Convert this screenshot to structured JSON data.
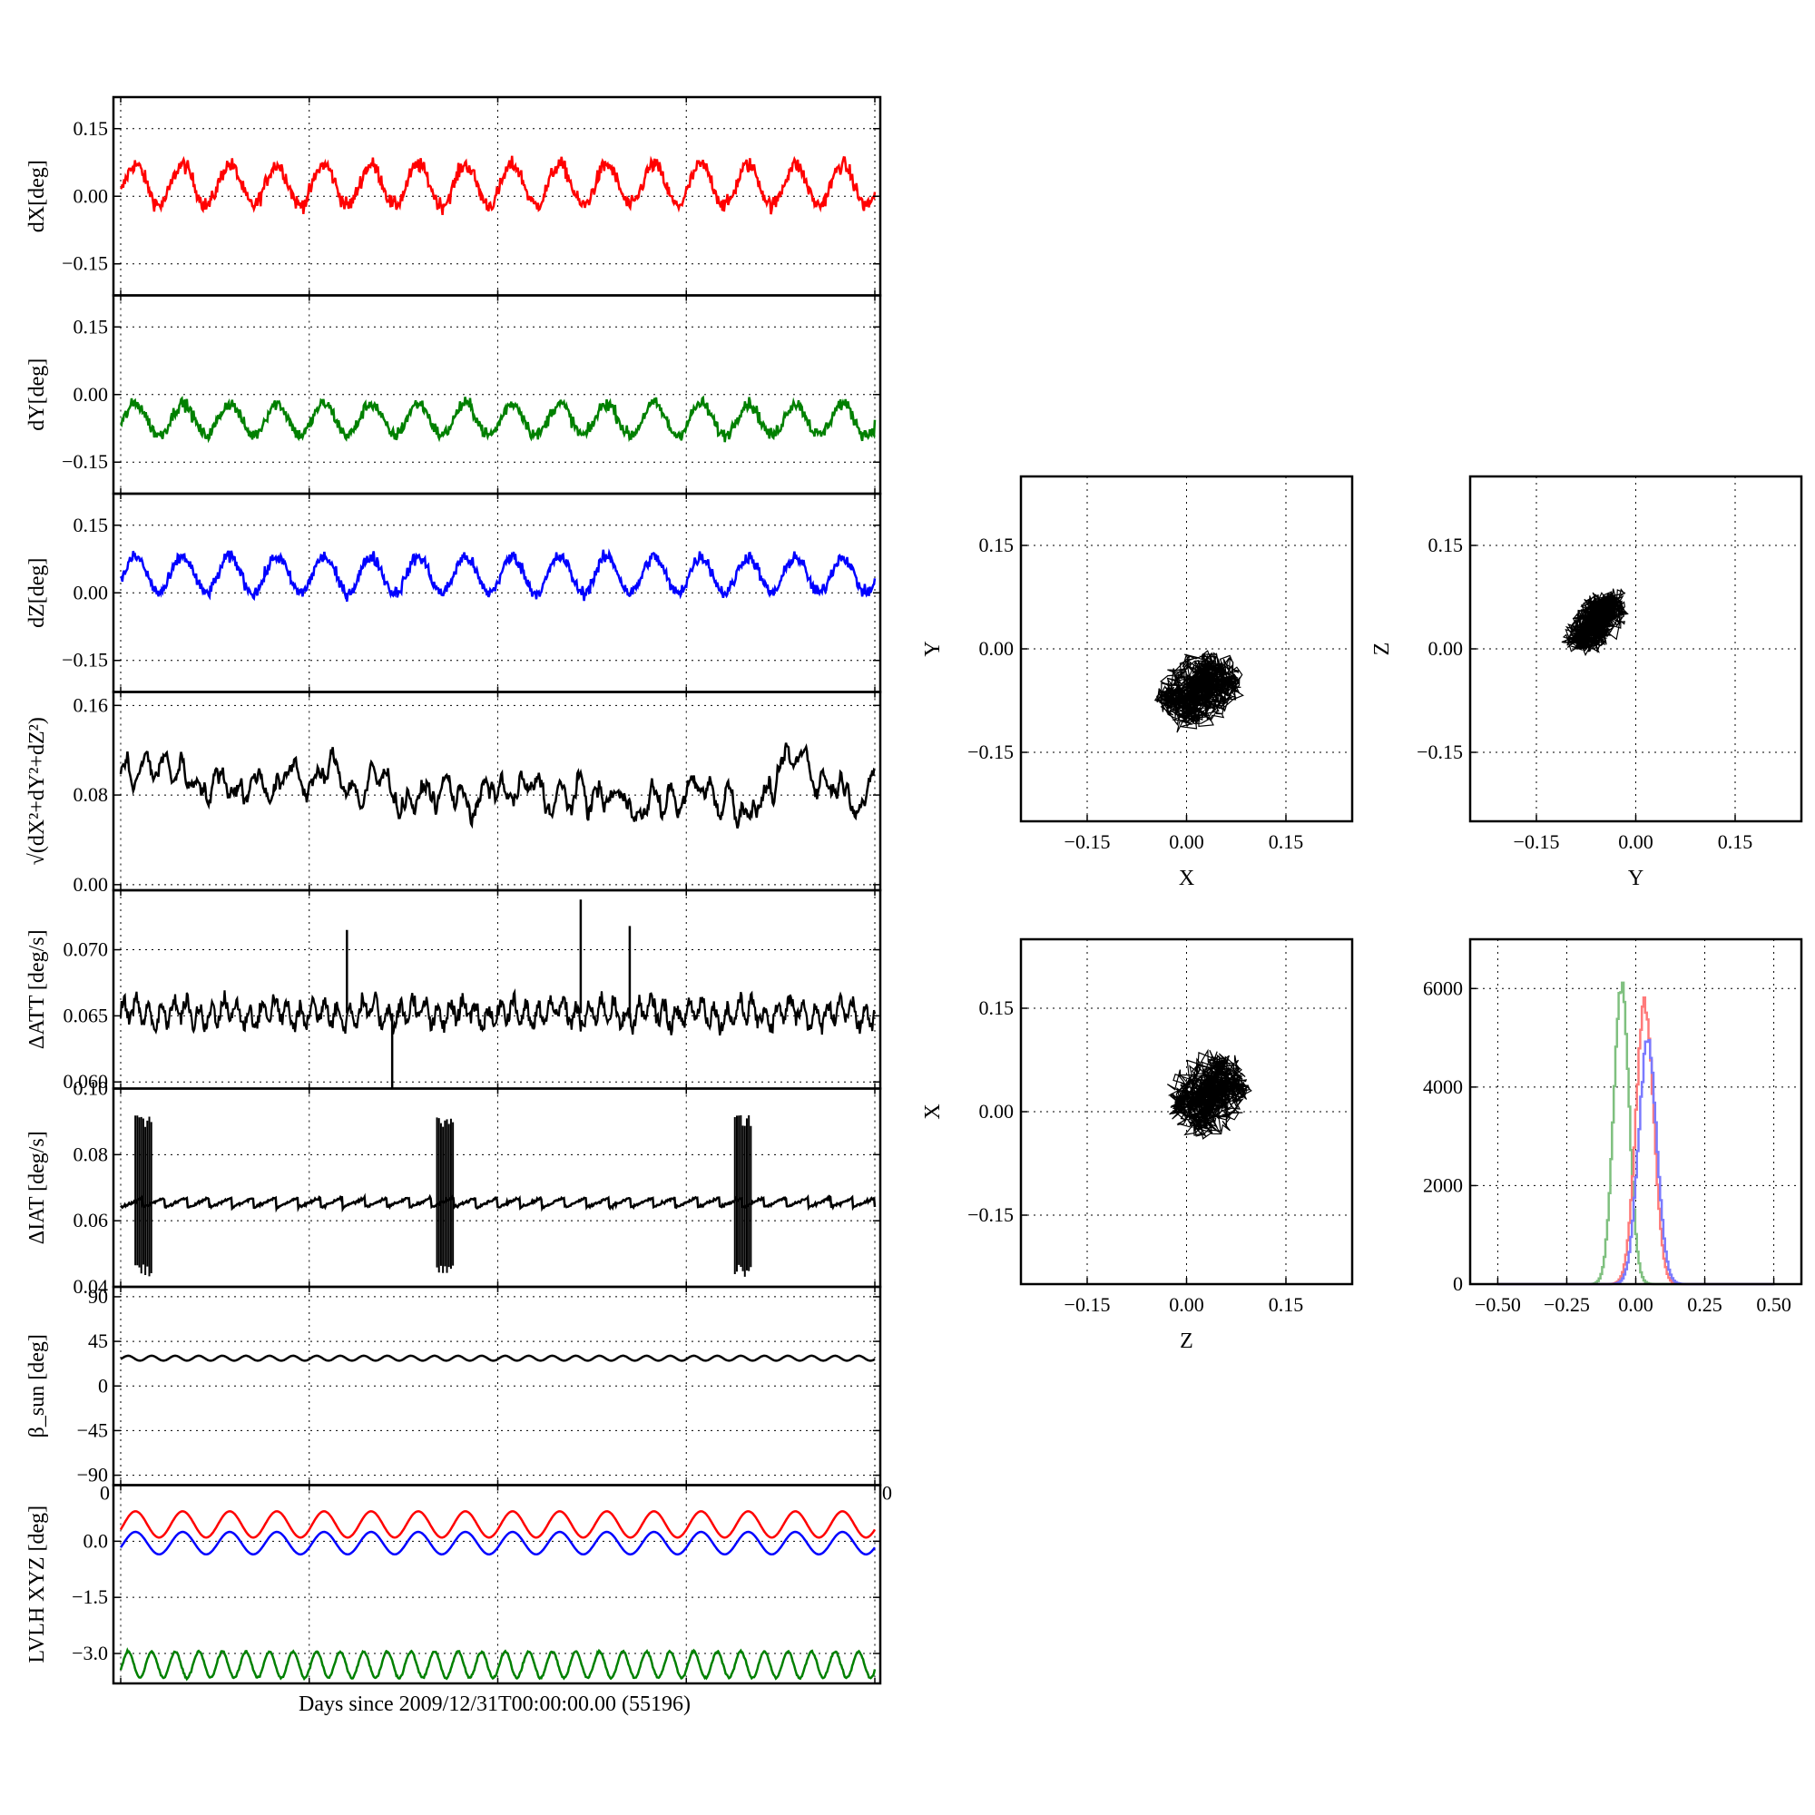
{
  "x_axis_label": "Days since 2009/12/31T00:00:00.00 (55196)",
  "colors": {
    "red": "#ff0000",
    "green": "#008000",
    "blue": "#0000ff",
    "black": "#000000",
    "hist_red": "#ff7a7a",
    "hist_green": "#7fc07f",
    "hist_blue": "#7a7aff"
  },
  "chart_data": [
    {
      "type": "line",
      "id": "dx",
      "ylabel": "dX[deg]",
      "ylim": [
        -0.22,
        0.22
      ],
      "yticks": [
        0.15,
        0.0,
        -0.15
      ],
      "ytick_labels": [
        "0.15",
        "0.00",
        "−0.15"
      ],
      "grid": true,
      "series": [
        {
          "color": "red",
          "pattern": "wave",
          "mean": 0.025,
          "amp": 0.045,
          "cycles": 16,
          "noise": 0.012
        }
      ]
    },
    {
      "type": "line",
      "id": "dy",
      "ylabel": "dY[deg]",
      "ylim": [
        -0.22,
        0.22
      ],
      "yticks": [
        0.15,
        0.0,
        -0.15
      ],
      "ytick_labels": [
        "0.15",
        "0.00",
        "−0.15"
      ],
      "grid": true,
      "series": [
        {
          "color": "green",
          "pattern": "wave",
          "mean": -0.055,
          "amp": 0.035,
          "cycles": 16,
          "noise": 0.01
        }
      ]
    },
    {
      "type": "line",
      "id": "dz",
      "ylabel": "dZ[deg]",
      "ylim": [
        -0.22,
        0.22
      ],
      "yticks": [
        0.15,
        0.0,
        -0.15
      ],
      "ytick_labels": [
        "0.15",
        "0.00",
        "−0.15"
      ],
      "grid": true,
      "series": [
        {
          "color": "blue",
          "pattern": "wave",
          "mean": 0.04,
          "amp": 0.04,
          "cycles": 16,
          "noise": 0.01
        }
      ]
    },
    {
      "type": "line",
      "id": "dr",
      "ylabel": "√(dX²+dY²+dZ²)",
      "ylim": [
        -0.005,
        0.172
      ],
      "yticks": [
        0.16,
        0.08,
        0.0
      ],
      "ytick_labels": [
        "0.16",
        "0.08",
        "0.00"
      ],
      "grid": true,
      "series": [
        {
          "color": "black",
          "pattern": "walk",
          "mean": 0.095,
          "amp": 0.008,
          "cycles": 40,
          "noise": 0.006
        }
      ]
    },
    {
      "type": "line",
      "id": "att",
      "ylabel": "ΔATT [deg/s]",
      "ylim": [
        0.0595,
        0.0745
      ],
      "yticks": [
        0.07,
        0.065,
        0.06
      ],
      "ytick_labels": [
        "0.070",
        "0.065",
        "0.060"
      ],
      "grid": true,
      "series": [
        {
          "color": "black",
          "pattern": "band",
          "mean": 0.0652,
          "amp": 0.0008,
          "cycles": 60,
          "noise": 0.0006
        }
      ],
      "spikes": [
        {
          "x": 0.3,
          "y": 0.0715
        },
        {
          "x": 0.36,
          "y": 0.0595
        },
        {
          "x": 0.61,
          "y": 0.0738
        },
        {
          "x": 0.675,
          "y": 0.0718
        }
      ]
    },
    {
      "type": "line",
      "id": "iat",
      "ylabel": "ΔIAT [deg/s]",
      "ylim": [
        0.04,
        0.1
      ],
      "yticks": [
        0.1,
        0.08,
        0.06,
        0.04
      ],
      "ytick_labels": [
        "0.10",
        "0.08",
        "0.06",
        "0.04"
      ],
      "grid": true,
      "series": [
        {
          "color": "black",
          "pattern": "saw",
          "mean": 0.0655,
          "amp": 0.0015,
          "cycles": 34,
          "noise": 0.0003
        }
      ],
      "bursts": [
        {
          "x": 0.03,
          "ymin": 0.043,
          "ymax": 0.092
        },
        {
          "x": 0.43,
          "ymin": 0.043,
          "ymax": 0.092
        },
        {
          "x": 0.825,
          "ymin": 0.043,
          "ymax": 0.092
        }
      ]
    },
    {
      "type": "line",
      "id": "beta",
      "ylabel": "β_sun [deg]",
      "ylim": [
        -100,
        100
      ],
      "yticks": [
        90,
        45,
        0,
        -45,
        -90
      ],
      "ytick_labels": [
        "90",
        "45",
        "0",
        "−45",
        "−90"
      ],
      "grid": true,
      "series": [
        {
          "color": "black",
          "pattern": "wave",
          "mean": 28,
          "amp": 2.5,
          "cycles": 32,
          "noise": 0
        }
      ]
    },
    {
      "type": "line",
      "id": "lvlh",
      "ylabel": "LVLH XYZ [deg]",
      "ylim": [
        -3.8,
        1.5
      ],
      "yticks": [
        0.0,
        -1.5,
        -3.0
      ],
      "ytick_labels": [
        "0.0",
        "−1.5",
        "−3.0"
      ],
      "grid": true,
      "corner_labels": [
        "0",
        "0"
      ],
      "series": [
        {
          "color": "red",
          "pattern": "wave",
          "mean": 0.45,
          "amp": 0.35,
          "cycles": 16,
          "noise": 0
        },
        {
          "color": "blue",
          "pattern": "wave",
          "mean": -0.05,
          "amp": 0.3,
          "cycles": 16,
          "noise": 0
        },
        {
          "color": "green",
          "pattern": "wave",
          "mean": -3.3,
          "amp": 0.35,
          "cycles": 32,
          "noise": 0.02
        }
      ]
    },
    {
      "type": "scatter",
      "id": "xy",
      "xlabel": "X",
      "ylabel": "Y",
      "xlim": [
        -0.25,
        0.25
      ],
      "ylim": [
        -0.25,
        0.25
      ],
      "xticks": [
        -0.15,
        0.0,
        0.15
      ],
      "yticks": [
        0.15,
        0.0,
        -0.15
      ],
      "xtick_labels": [
        "−0.15",
        "0.00",
        "0.15"
      ],
      "ytick_labels": [
        "0.15",
        "0.00",
        "−0.15"
      ],
      "cloud": {
        "cx": 0.02,
        "cy": -0.06,
        "rx": 0.055,
        "ry": 0.045,
        "tilt": 0
      }
    },
    {
      "type": "scatter",
      "id": "yz",
      "xlabel": "Y",
      "ylabel": "Z",
      "xlim": [
        -0.25,
        0.25
      ],
      "ylim": [
        -0.25,
        0.25
      ],
      "xticks": [
        -0.15,
        0.0,
        0.15
      ],
      "yticks": [
        0.15,
        0.0,
        -0.15
      ],
      "xtick_labels": [
        "−0.15",
        "0.00",
        "0.15"
      ],
      "ytick_labels": [
        "0.15",
        "0.00",
        "−0.15"
      ],
      "cloud": {
        "cx": -0.06,
        "cy": 0.04,
        "rx": 0.045,
        "ry": 0.025,
        "tilt": 0.6
      }
    },
    {
      "type": "scatter",
      "id": "zx",
      "xlabel": "Z",
      "ylabel": "X",
      "xlim": [
        -0.25,
        0.25
      ],
      "ylim": [
        -0.25,
        0.25
      ],
      "xticks": [
        -0.15,
        0.0,
        0.15
      ],
      "yticks": [
        0.15,
        0.0,
        -0.15
      ],
      "xtick_labels": [
        "−0.15",
        "0.00",
        "0.15"
      ],
      "ytick_labels": [
        "0.15",
        "0.00",
        "−0.15"
      ],
      "cloud": {
        "cx": 0.035,
        "cy": 0.025,
        "rx": 0.05,
        "ry": 0.05,
        "tilt": 0
      }
    },
    {
      "type": "bar",
      "id": "hist",
      "xlim": [
        -0.6,
        0.6
      ],
      "ylim": [
        0,
        7000
      ],
      "xticks": [
        -0.5,
        -0.25,
        0.0,
        0.25,
        0.5
      ],
      "yticks": [
        6000,
        4000,
        2000,
        0
      ],
      "xtick_labels": [
        "−0.50",
        "−0.25",
        "0.00",
        "0.25",
        "0.50"
      ],
      "ytick_labels": [
        "6000",
        "4000",
        "2000",
        "0"
      ],
      "series": [
        {
          "color": "hist_green",
          "center": -0.055,
          "sigma": 0.028,
          "peak": 6100
        },
        {
          "color": "hist_red",
          "center": 0.03,
          "sigma": 0.032,
          "peak": 5700
        },
        {
          "color": "hist_blue",
          "center": 0.04,
          "sigma": 0.033,
          "peak": 4900
        }
      ]
    }
  ]
}
